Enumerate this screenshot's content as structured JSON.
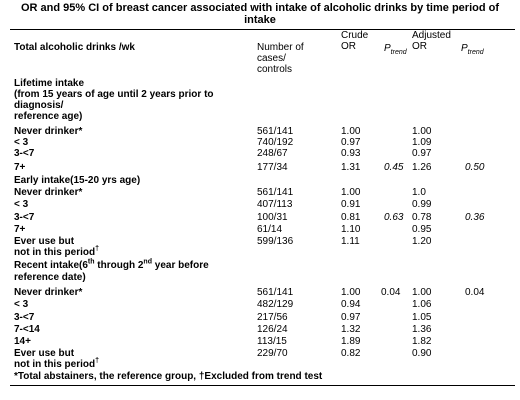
{
  "title": {
    "line1": "OR and 95% CI of breast cancer associated with intake of alcoholic drinks by time period of",
    "line2": "intake"
  },
  "header": {
    "col1": "Total alcoholic drinks /wk",
    "cases_line1": "Number of",
    "cases_line2": "cases/",
    "cases_line3": "controls",
    "crude_line1": "Crude",
    "crude_line2": "OR",
    "ptrend_p": "P",
    "ptrend_sub": "trend",
    "adjusted_line1": "Adjusted",
    "adjusted_line2": "OR"
  },
  "sections": {
    "lifetime": {
      "heading_lines": [
        "Lifetime intake",
        "(from 15 years of age until 2 years prior to",
        "diagnosis/",
        "reference age)"
      ],
      "rows": [
        {
          "label": "Never drinker*",
          "cases": "561/141",
          "crude": "1.00",
          "ptrend1": "",
          "adjusted": "1.00",
          "ptrend2": ""
        },
        {
          "label": "< 3",
          "cases": "740/192",
          "crude": "0.97",
          "ptrend1": "",
          "adjusted": "1.09",
          "ptrend2": ""
        },
        {
          "label": "3-<7",
          "cases": "248/67",
          "crude": "0.93",
          "ptrend1": "",
          "adjusted": "0.97",
          "ptrend2": ""
        },
        {
          "label": "7+",
          "cases": "177/34",
          "crude": "1.31",
          "ptrend1": "0.45",
          "adjusted": "1.26",
          "ptrend2": "0.50"
        }
      ]
    },
    "early": {
      "heading": "Early intake(15-20 yrs age)",
      "rows": [
        {
          "label": "Never drinker*",
          "cases": "561/141",
          "crude": "1.00",
          "ptrend1": "",
          "adjusted": "1.0",
          "ptrend2": ""
        },
        {
          "label": "< 3",
          "cases": "407/113",
          "crude": "0.91",
          "ptrend1": "",
          "adjusted": "0.99",
          "ptrend2": ""
        },
        {
          "label": "3-<7",
          "cases": "100/31",
          "crude": "0.81",
          "ptrend1": "0.63",
          "adjusted": "0.78",
          "ptrend2": "0.36"
        },
        {
          "label": "7+",
          "cases": "61/14",
          "crude": "1.10",
          "ptrend1": "",
          "adjusted": "0.95",
          "ptrend2": ""
        }
      ],
      "ever_use": {
        "line1": "Ever use but",
        "line2": "not in this period",
        "dagger": "†",
        "cases": "599/136",
        "crude": "1.11",
        "adjusted": "1.20"
      }
    },
    "recent": {
      "heading": {
        "part1": "Recent intake(6",
        "sup1": "th",
        "part2": " through 2",
        "sup2": "nd",
        "part3": " year before"
      },
      "heading_line2": "reference date)",
      "rows": [
        {
          "label": "Never drinker*",
          "cases": "561/141",
          "crude": "1.00",
          "ptrend1": "0.04",
          "adjusted": "1.00",
          "ptrend2": "0.04"
        },
        {
          "label": "< 3",
          "cases": "482/129",
          "crude": "0.94",
          "ptrend1": "",
          "adjusted": "1.06",
          "ptrend2": ""
        },
        {
          "label": "3-<7",
          "cases": "217/56",
          "crude": "0.97",
          "ptrend1": "",
          "adjusted": "1.05",
          "ptrend2": ""
        },
        {
          "label": "7-<14",
          "cases": "126/24",
          "crude": "1.32",
          "ptrend1": "",
          "adjusted": "1.36",
          "ptrend2": ""
        },
        {
          "label": "14+",
          "cases": "113/15",
          "crude": "1.89",
          "ptrend1": "",
          "adjusted": "1.82",
          "ptrend2": ""
        }
      ],
      "ever_use": {
        "line1": "Ever use but",
        "line2": "not in this period",
        "dagger": "†",
        "cases": "229/70",
        "crude": "0.82",
        "adjusted": "0.90"
      }
    }
  },
  "footnote": "*Total abstainers, the reference group, †Excluded from trend test"
}
